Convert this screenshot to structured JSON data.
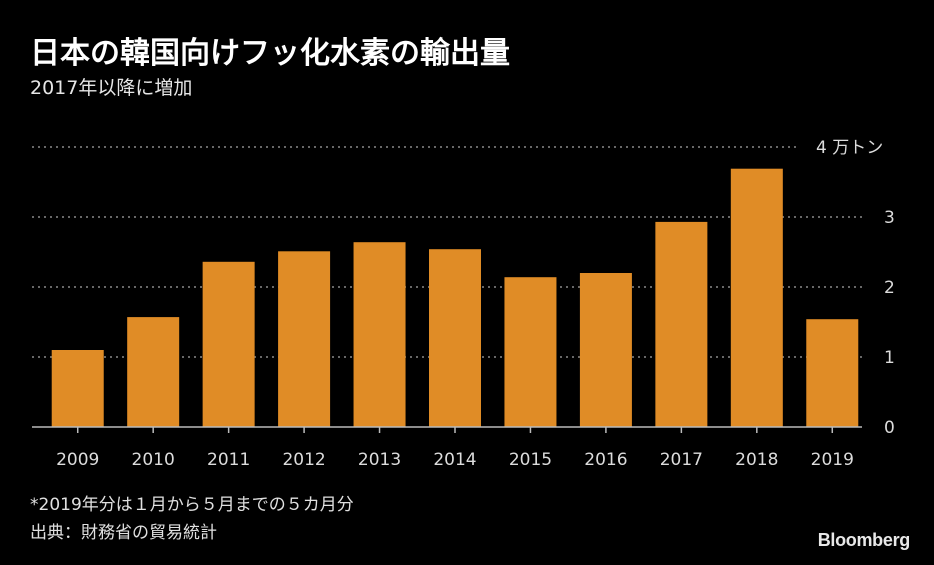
{
  "header": {
    "title": "日本の韓国向けフッ化水素の輸出量",
    "subtitle": "2017年以降に増加"
  },
  "footer": {
    "footnote": "*2019年分は１月から５月までの５カ月分",
    "source": "出典：財務省の貿易統計",
    "brand": "Bloomberg"
  },
  "colors": {
    "bar": "#e08c26",
    "background": "#000000",
    "grid": "#8a8a8a",
    "text": "#dcdcdc"
  },
  "chart_data": {
    "type": "bar",
    "title": "日本の韓国向けフッ化水素の輸出量",
    "subtitle": "2017年以降に増加",
    "xlabel": "",
    "ylabel": "万トン",
    "categories": [
      "2009",
      "2010",
      "2011",
      "2012",
      "2013",
      "2014",
      "2015",
      "2016",
      "2017",
      "2018",
      "2019"
    ],
    "values": [
      1.1,
      1.57,
      2.36,
      2.51,
      2.64,
      2.54,
      2.14,
      2.2,
      2.93,
      3.69,
      1.54
    ],
    "ylim": [
      0,
      4
    ],
    "yticks": [
      0,
      1,
      2,
      3,
      4
    ],
    "ytick_labels": [
      "0",
      "1",
      "2",
      "3",
      "4 万トン"
    ],
    "grid": true,
    "y_axis_side": "right",
    "annotation": "*2019年分は１月から５月までの５カ月分"
  }
}
